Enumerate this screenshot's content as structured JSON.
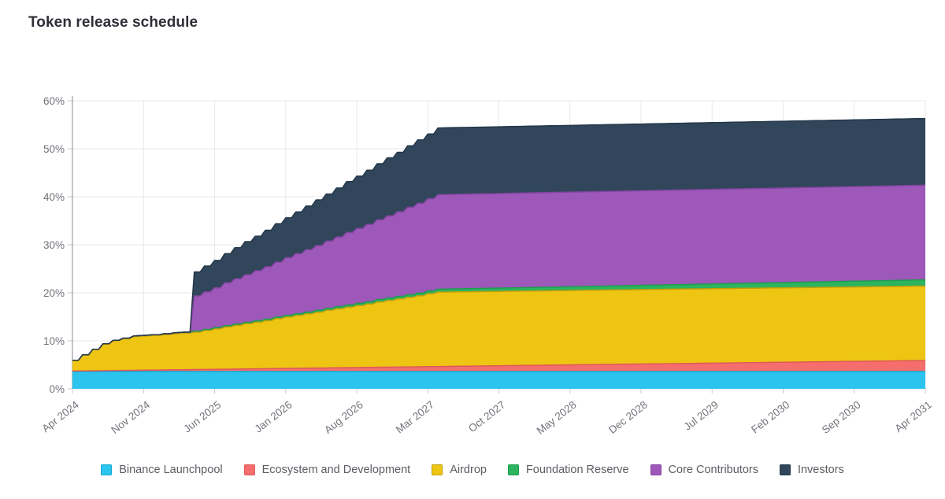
{
  "page": {
    "title": "Token release schedule",
    "background": "#ffffff"
  },
  "chart_data": {
    "type": "area",
    "stacked": true,
    "title": "Token release schedule",
    "grid": true,
    "legend_position": "bottom",
    "step_interpolation": true,
    "x_axis": {
      "unit": "months",
      "start_label": "Apr 2024",
      "end_label": "Apr 2031",
      "tick_labels": [
        "Apr 2024",
        "Nov 2024",
        "Jun 2025",
        "Jan 2026",
        "Aug 2026",
        "Mar 2027",
        "Oct 2027",
        "May 2028",
        "Dec 2028",
        "Jul 2029",
        "Feb 2030",
        "Sep 2030",
        "Apr 2031"
      ],
      "tick_month_index": [
        0,
        7,
        14,
        21,
        28,
        35,
        42,
        49,
        56,
        63,
        70,
        77,
        84
      ],
      "total_months": 84
    },
    "y_axis": {
      "tick_labels": [
        "0%",
        "10%",
        "20%",
        "30%",
        "40%",
        "50%",
        "60%"
      ],
      "min": 0,
      "max": 60,
      "format": "percent"
    },
    "colors": {
      "grid": "#e9e9ec",
      "axis_line": "#9b9ca2",
      "tick": "#c9c9cd",
      "axis_text": "#73747b",
      "legend_text": "#5b5d63",
      "title_text": "#2e2f37"
    },
    "series": [
      {
        "name": "Binance Launchpool",
        "color": "#2ac4ee",
        "edge_color": "#15a9d2",
        "values": [
          3.6,
          3.6,
          3.6,
          3.6,
          3.6,
          3.6,
          3.6,
          3.6,
          3.6,
          3.6,
          3.6,
          3.6,
          3.6,
          3.6,
          3.6,
          3.6,
          3.6,
          3.6,
          3.6,
          3.6,
          3.6,
          3.6,
          3.6,
          3.6,
          3.6,
          3.6,
          3.6,
          3.6,
          3.6,
          3.6,
          3.6,
          3.6,
          3.6,
          3.6,
          3.6,
          3.6,
          3.6,
          3.6,
          3.6,
          3.6,
          3.6,
          3.6,
          3.6,
          3.6,
          3.6,
          3.6,
          3.6,
          3.6,
          3.6,
          3.6,
          3.6,
          3.6,
          3.6,
          3.6,
          3.6,
          3.6,
          3.6,
          3.6,
          3.6,
          3.6,
          3.6,
          3.6,
          3.6,
          3.6,
          3.6,
          3.6,
          3.6,
          3.6,
          3.6,
          3.6,
          3.6,
          3.6,
          3.6,
          3.6,
          3.6,
          3.6,
          3.6,
          3.6,
          3.6,
          3.6,
          3.6,
          3.6,
          3.6,
          3.6,
          3.6
        ]
      },
      {
        "name": "Ecosystem and Development",
        "color": "#f56d6d",
        "edge_color": "#de5a58",
        "values": [
          0.1,
          0.13,
          0.15,
          0.18,
          0.2,
          0.23,
          0.26,
          0.28,
          0.31,
          0.34,
          0.36,
          0.39,
          0.41,
          0.44,
          0.47,
          0.49,
          0.52,
          0.55,
          0.57,
          0.6,
          0.62,
          0.65,
          0.68,
          0.7,
          0.73,
          0.75,
          0.78,
          0.81,
          0.83,
          0.86,
          0.89,
          0.91,
          0.94,
          0.96,
          0.99,
          1.02,
          1.04,
          1.07,
          1.1,
          1.12,
          1.15,
          1.17,
          1.2,
          1.23,
          1.25,
          1.28,
          1.3,
          1.33,
          1.36,
          1.38,
          1.41,
          1.44,
          1.46,
          1.49,
          1.51,
          1.54,
          1.57,
          1.59,
          1.62,
          1.65,
          1.67,
          1.7,
          1.72,
          1.75,
          1.78,
          1.8,
          1.83,
          1.85,
          1.88,
          1.91,
          1.93,
          1.96,
          1.99,
          2.01,
          2.04,
          2.06,
          2.09,
          2.12,
          2.14,
          2.17,
          2.19,
          2.22,
          2.25,
          2.27,
          2.3
        ]
      },
      {
        "name": "Airdrop",
        "color": "#eec513",
        "edge_color": "#c0a00c",
        "values": [
          2.2,
          3.3,
          4.4,
          5.5,
          6.2,
          6.6,
          7.0,
          7.1,
          7.2,
          7.35,
          7.5,
          7.6,
          7.8,
          8.1,
          8.4,
          8.8,
          9.1,
          9.4,
          9.7,
          10.0,
          10.4,
          10.7,
          11.0,
          11.3,
          11.6,
          12.0,
          12.3,
          12.6,
          12.9,
          13.2,
          13.6,
          13.9,
          14.2,
          14.5,
          14.8,
          15.2,
          15.5,
          15.5,
          15.5,
          15.5,
          15.5,
          15.5,
          15.5,
          15.5,
          15.5,
          15.5,
          15.5,
          15.5,
          15.5,
          15.5,
          15.5,
          15.5,
          15.5,
          15.5,
          15.5,
          15.5,
          15.5,
          15.5,
          15.5,
          15.5,
          15.5,
          15.5,
          15.5,
          15.5,
          15.5,
          15.5,
          15.5,
          15.5,
          15.5,
          15.5,
          15.5,
          15.5,
          15.5,
          15.5,
          15.5,
          15.5,
          15.5,
          15.5,
          15.5,
          15.5,
          15.5,
          15.5,
          15.5,
          15.5,
          15.5
        ]
      },
      {
        "name": "Foundation Reserve",
        "color": "#2db45f",
        "edge_color": "#1f9c4e",
        "values": [
          0.05,
          0.06,
          0.08,
          0.09,
          0.11,
          0.12,
          0.14,
          0.15,
          0.17,
          0.18,
          0.2,
          0.21,
          0.23,
          0.24,
          0.26,
          0.27,
          0.29,
          0.3,
          0.32,
          0.33,
          0.35,
          0.36,
          0.38,
          0.39,
          0.41,
          0.42,
          0.44,
          0.45,
          0.47,
          0.48,
          0.5,
          0.51,
          0.53,
          0.54,
          0.56,
          0.57,
          0.59,
          0.6,
          0.62,
          0.63,
          0.65,
          0.66,
          0.68,
          0.69,
          0.7,
          0.72,
          0.73,
          0.75,
          0.76,
          0.78,
          0.79,
          0.81,
          0.82,
          0.84,
          0.85,
          0.87,
          0.88,
          0.9,
          0.91,
          0.93,
          0.94,
          0.96,
          0.97,
          0.99,
          1.0,
          1.02,
          1.03,
          1.05,
          1.06,
          1.08,
          1.09,
          1.11,
          1.12,
          1.14,
          1.15,
          1.17,
          1.18,
          1.2,
          1.21,
          1.23,
          1.24,
          1.26,
          1.27,
          1.29,
          1.3
        ]
      },
      {
        "name": "Core Contributors",
        "color": "#9d58b9",
        "edge_color": "#8345a0",
        "values": [
          0,
          0,
          0,
          0,
          0,
          0,
          0,
          0,
          0,
          0,
          0,
          0,
          7.3,
          7.8,
          8.3,
          8.9,
          9.4,
          9.9,
          10.4,
          10.9,
          11.4,
          12.0,
          12.5,
          13.0,
          13.5,
          14.0,
          14.5,
          15.1,
          15.6,
          16.1,
          16.6,
          17.1,
          17.6,
          18.2,
          18.7,
          19.2,
          19.7,
          19.7,
          19.7,
          19.7,
          19.7,
          19.7,
          19.7,
          19.7,
          19.7,
          19.7,
          19.7,
          19.7,
          19.7,
          19.7,
          19.7,
          19.7,
          19.7,
          19.7,
          19.7,
          19.7,
          19.7,
          19.7,
          19.7,
          19.7,
          19.7,
          19.7,
          19.7,
          19.7,
          19.7,
          19.7,
          19.7,
          19.7,
          19.7,
          19.7,
          19.7,
          19.7,
          19.7,
          19.7,
          19.7,
          19.7,
          19.7,
          19.7,
          19.7,
          19.7,
          19.7,
          19.7,
          19.7,
          19.7,
          19.7
        ]
      },
      {
        "name": "Investors",
        "color": "#31465b",
        "edge_color": "#24384a",
        "values": [
          0,
          0,
          0,
          0,
          0,
          0,
          0,
          0,
          0,
          0,
          0,
          0,
          5.0,
          5.4,
          5.7,
          6.1,
          6.5,
          6.9,
          7.2,
          7.6,
          8.0,
          8.3,
          8.7,
          9.1,
          9.5,
          9.8,
          10.2,
          10.6,
          10.9,
          11.3,
          11.7,
          12.1,
          12.4,
          12.8,
          13.2,
          13.5,
          13.9,
          13.9,
          13.9,
          13.9,
          13.9,
          13.9,
          13.9,
          13.9,
          13.9,
          13.9,
          13.9,
          13.9,
          13.9,
          13.9,
          13.9,
          13.9,
          13.9,
          13.9,
          13.9,
          13.9,
          13.9,
          13.9,
          13.9,
          13.9,
          13.9,
          13.9,
          13.9,
          13.9,
          13.9,
          13.9,
          13.9,
          13.9,
          13.9,
          13.9,
          13.9,
          13.9,
          13.9,
          13.9,
          13.9,
          13.9,
          13.9,
          13.9,
          13.9,
          13.9,
          13.9,
          13.9,
          13.9,
          13.9,
          13.9
        ]
      }
    ]
  }
}
